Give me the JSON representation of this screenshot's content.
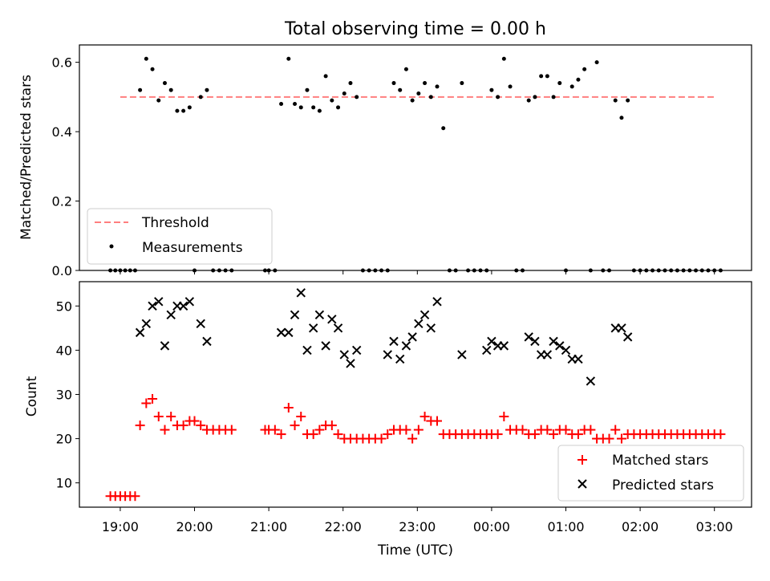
{
  "figure": {
    "title": "Total observing time = 0.00 h",
    "xlabel": "Time (UTC)"
  },
  "colors": {
    "threshold": "#ff7f7f",
    "measurements": "#000000",
    "matched": "#ff0000",
    "predicted": "#000000"
  },
  "chart_data": [
    {
      "type": "scatter",
      "ylabel": "Matched/Predicted stars",
      "ylim": [
        0,
        0.65
      ],
      "yticks": [
        "0.0",
        "0.2",
        "0.4",
        "0.6"
      ],
      "legend": {
        "placement": "lower-left",
        "entries": [
          "Threshold",
          "Measurements"
        ]
      },
      "threshold": {
        "name": "Threshold",
        "value": 0.5,
        "x_start": "19:00",
        "x_end": "03:00"
      },
      "series": [
        {
          "name": "Measurements",
          "points": [
            [
              "18:52",
              0
            ],
            [
              "18:56",
              0
            ],
            [
              "19:00",
              0
            ],
            [
              "19:04",
              0
            ],
            [
              "19:08",
              0
            ],
            [
              "19:12",
              0
            ],
            [
              "19:16",
              0.52
            ],
            [
              "19:21",
              0.61
            ],
            [
              "19:26",
              0.58
            ],
            [
              "19:31",
              0.49
            ],
            [
              "19:36",
              0.54
            ],
            [
              "19:41",
              0.52
            ],
            [
              "19:46",
              0.46
            ],
            [
              "19:51",
              0.46
            ],
            [
              "19:56",
              0.47
            ],
            [
              "20:00",
              0
            ],
            [
              "20:05",
              0.5
            ],
            [
              "20:10",
              0.52
            ],
            [
              "20:15",
              0
            ],
            [
              "20:20",
              0
            ],
            [
              "20:25",
              0
            ],
            [
              "20:30",
              0
            ],
            [
              "20:57",
              0
            ],
            [
              "21:00",
              0
            ],
            [
              "21:05",
              0
            ],
            [
              "21:10",
              0.48
            ],
            [
              "21:16",
              0.61
            ],
            [
              "21:21",
              0.48
            ],
            [
              "21:26",
              0.47
            ],
            [
              "21:31",
              0.52
            ],
            [
              "21:36",
              0.47
            ],
            [
              "21:41",
              0.46
            ],
            [
              "21:46",
              0.56
            ],
            [
              "21:51",
              0.49
            ],
            [
              "21:56",
              0.47
            ],
            [
              "22:01",
              0.51
            ],
            [
              "22:06",
              0.54
            ],
            [
              "22:11",
              0.5
            ],
            [
              "22:16",
              0
            ],
            [
              "22:21",
              0
            ],
            [
              "22:26",
              0
            ],
            [
              "22:31",
              0
            ],
            [
              "22:36",
              0
            ],
            [
              "22:41",
              0.54
            ],
            [
              "22:46",
              0.52
            ],
            [
              "22:51",
              0.58
            ],
            [
              "22:56",
              0.49
            ],
            [
              "23:01",
              0.51
            ],
            [
              "23:06",
              0.54
            ],
            [
              "23:11",
              0.5
            ],
            [
              "23:16",
              0.53
            ],
            [
              "23:21",
              0.41
            ],
            [
              "23:26",
              0
            ],
            [
              "23:31",
              0
            ],
            [
              "23:36",
              0.54
            ],
            [
              "23:41",
              0
            ],
            [
              "23:46",
              0
            ],
            [
              "23:51",
              0
            ],
            [
              "23:56",
              0
            ],
            [
              "00:00",
              0.52
            ],
            [
              "00:05",
              0.5
            ],
            [
              "00:10",
              0.61
            ],
            [
              "00:15",
              0.53
            ],
            [
              "00:20",
              0
            ],
            [
              "00:25",
              0
            ],
            [
              "00:30",
              0.49
            ],
            [
              "00:35",
              0.5
            ],
            [
              "00:40",
              0.56
            ],
            [
              "00:45",
              0.56
            ],
            [
              "00:50",
              0.5
            ],
            [
              "00:55",
              0.54
            ],
            [
              "01:00",
              0
            ],
            [
              "01:05",
              0.53
            ],
            [
              "01:10",
              0.55
            ],
            [
              "01:15",
              0.58
            ],
            [
              "01:20",
              0
            ],
            [
              "01:25",
              0.6
            ],
            [
              "01:30",
              0
            ],
            [
              "01:35",
              0
            ],
            [
              "01:40",
              0.49
            ],
            [
              "01:45",
              0.44
            ],
            [
              "01:50",
              0.49
            ],
            [
              "01:55",
              0
            ],
            [
              "02:00",
              0
            ],
            [
              "02:05",
              0
            ],
            [
              "02:10",
              0
            ],
            [
              "02:15",
              0
            ],
            [
              "02:20",
              0
            ],
            [
              "02:25",
              0
            ],
            [
              "02:30",
              0
            ],
            [
              "02:35",
              0
            ],
            [
              "02:40",
              0
            ],
            [
              "02:45",
              0
            ],
            [
              "02:50",
              0
            ],
            [
              "02:55",
              0
            ],
            [
              "03:00",
              0
            ],
            [
              "03:05",
              0
            ]
          ]
        }
      ]
    },
    {
      "type": "scatter",
      "ylabel": "Count",
      "ylim": [
        4.5,
        55.5
      ],
      "yticks": [
        "10",
        "20",
        "30",
        "40",
        "50"
      ],
      "xlim": [
        "18:27",
        "03:30"
      ],
      "xticks": [
        "19:00",
        "20:00",
        "21:00",
        "22:00",
        "23:00",
        "00:00",
        "01:00",
        "02:00",
        "03:00"
      ],
      "legend": {
        "placement": "lower-right",
        "entries": [
          "Matched stars",
          "Predicted stars"
        ]
      },
      "series": [
        {
          "name": "Matched stars",
          "marker": "+",
          "points": [
            [
              "18:52",
              7
            ],
            [
              "18:56",
              7
            ],
            [
              "19:00",
              7
            ],
            [
              "19:04",
              7
            ],
            [
              "19:08",
              7
            ],
            [
              "19:12",
              7
            ],
            [
              "19:16",
              23
            ],
            [
              "19:21",
              28
            ],
            [
              "19:26",
              29
            ],
            [
              "19:31",
              25
            ],
            [
              "19:36",
              22
            ],
            [
              "19:41",
              25
            ],
            [
              "19:46",
              23
            ],
            [
              "19:51",
              23
            ],
            [
              "19:56",
              24
            ],
            [
              "20:00",
              24
            ],
            [
              "20:05",
              23
            ],
            [
              "20:10",
              22
            ],
            [
              "20:15",
              22
            ],
            [
              "20:20",
              22
            ],
            [
              "20:25",
              22
            ],
            [
              "20:30",
              22
            ],
            [
              "20:57",
              22
            ],
            [
              "21:00",
              22
            ],
            [
              "21:05",
              22
            ],
            [
              "21:10",
              21
            ],
            [
              "21:16",
              27
            ],
            [
              "21:21",
              23
            ],
            [
              "21:26",
              25
            ],
            [
              "21:31",
              21
            ],
            [
              "21:36",
              21
            ],
            [
              "21:41",
              22
            ],
            [
              "21:46",
              23
            ],
            [
              "21:51",
              23
            ],
            [
              "21:56",
              21
            ],
            [
              "22:01",
              20
            ],
            [
              "22:06",
              20
            ],
            [
              "22:11",
              20
            ],
            [
              "22:16",
              20
            ],
            [
              "22:21",
              20
            ],
            [
              "22:26",
              20
            ],
            [
              "22:31",
              20
            ],
            [
              "22:36",
              21
            ],
            [
              "22:41",
              22
            ],
            [
              "22:46",
              22
            ],
            [
              "22:51",
              22
            ],
            [
              "22:56",
              20
            ],
            [
              "23:01",
              22
            ],
            [
              "23:06",
              25
            ],
            [
              "23:11",
              24
            ],
            [
              "23:16",
              24
            ],
            [
              "23:21",
              21
            ],
            [
              "23:26",
              21
            ],
            [
              "23:31",
              21
            ],
            [
              "23:36",
              21
            ],
            [
              "23:41",
              21
            ],
            [
              "23:46",
              21
            ],
            [
              "23:51",
              21
            ],
            [
              "23:56",
              21
            ],
            [
              "00:00",
              21
            ],
            [
              "00:05",
              21
            ],
            [
              "00:10",
              25
            ],
            [
              "00:15",
              22
            ],
            [
              "00:20",
              22
            ],
            [
              "00:25",
              22
            ],
            [
              "00:30",
              21
            ],
            [
              "00:35",
              21
            ],
            [
              "00:40",
              22
            ],
            [
              "00:45",
              22
            ],
            [
              "00:50",
              21
            ],
            [
              "00:55",
              22
            ],
            [
              "01:00",
              22
            ],
            [
              "01:05",
              21
            ],
            [
              "01:10",
              21
            ],
            [
              "01:15",
              22
            ],
            [
              "01:20",
              22
            ],
            [
              "01:25",
              20
            ],
            [
              "01:30",
              20
            ],
            [
              "01:35",
              20
            ],
            [
              "01:40",
              22
            ],
            [
              "01:45",
              20
            ],
            [
              "01:50",
              21
            ],
            [
              "01:55",
              21
            ],
            [
              "02:00",
              21
            ],
            [
              "02:05",
              21
            ],
            [
              "02:10",
              21
            ],
            [
              "02:15",
              21
            ],
            [
              "02:20",
              21
            ],
            [
              "02:25",
              21
            ],
            [
              "02:30",
              21
            ],
            [
              "02:35",
              21
            ],
            [
              "02:40",
              21
            ],
            [
              "02:45",
              21
            ],
            [
              "02:50",
              21
            ],
            [
              "02:55",
              21
            ],
            [
              "03:00",
              21
            ],
            [
              "03:05",
              21
            ]
          ]
        },
        {
          "name": "Predicted stars",
          "marker": "x",
          "points": [
            [
              "19:16",
              44
            ],
            [
              "19:21",
              46
            ],
            [
              "19:26",
              50
            ],
            [
              "19:31",
              51
            ],
            [
              "19:36",
              41
            ],
            [
              "19:41",
              48
            ],
            [
              "19:46",
              50
            ],
            [
              "19:51",
              50
            ],
            [
              "19:56",
              51
            ],
            [
              "20:05",
              46
            ],
            [
              "20:10",
              42
            ],
            [
              "21:10",
              44
            ],
            [
              "21:16",
              44
            ],
            [
              "21:21",
              48
            ],
            [
              "21:26",
              53
            ],
            [
              "21:31",
              40
            ],
            [
              "21:36",
              45
            ],
            [
              "21:41",
              48
            ],
            [
              "21:46",
              41
            ],
            [
              "21:51",
              47
            ],
            [
              "21:56",
              45
            ],
            [
              "22:01",
              39
            ],
            [
              "22:06",
              37
            ],
            [
              "22:11",
              40
            ],
            [
              "22:36",
              39
            ],
            [
              "22:41",
              42
            ],
            [
              "22:46",
              38
            ],
            [
              "22:51",
              41
            ],
            [
              "22:56",
              43
            ],
            [
              "23:01",
              46
            ],
            [
              "23:06",
              48
            ],
            [
              "23:11",
              45
            ],
            [
              "23:16",
              51
            ],
            [
              "23:36",
              39
            ],
            [
              "23:56",
              40
            ],
            [
              "00:00",
              42
            ],
            [
              "00:05",
              41
            ],
            [
              "00:10",
              41
            ],
            [
              "00:30",
              43
            ],
            [
              "00:35",
              42
            ],
            [
              "00:40",
              39
            ],
            [
              "00:45",
              39
            ],
            [
              "00:50",
              42
            ],
            [
              "00:55",
              41
            ],
            [
              "01:00",
              40
            ],
            [
              "01:05",
              38
            ],
            [
              "01:10",
              38
            ],
            [
              "01:20",
              33
            ],
            [
              "01:40",
              45
            ],
            [
              "01:45",
              45
            ],
            [
              "01:50",
              43
            ]
          ]
        }
      ]
    }
  ]
}
